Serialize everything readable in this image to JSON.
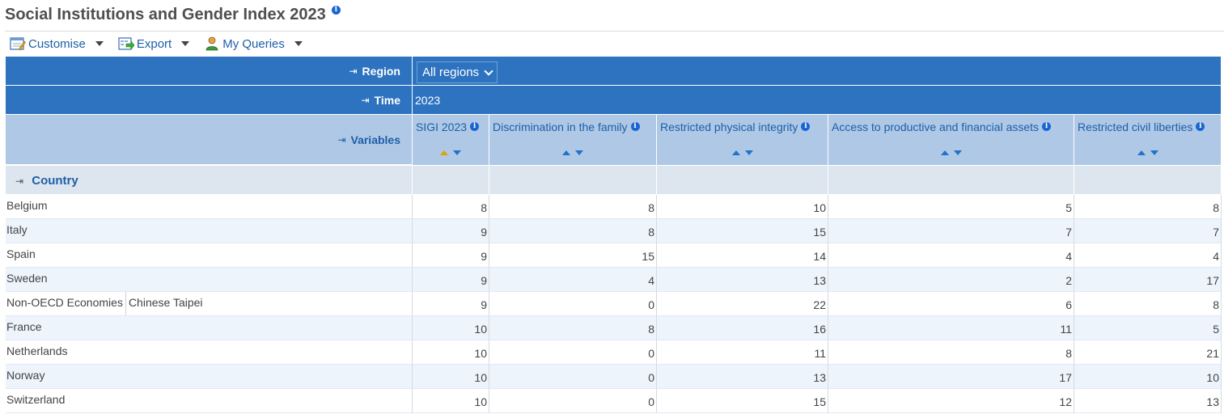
{
  "title": "Social Institutions and Gender Index 2023",
  "title_info_icon": "info-icon",
  "toolbar": {
    "customise": "Customise",
    "export": "Export",
    "my_queries": "My Queries"
  },
  "dims": {
    "region_label": "Region",
    "region_value": "All regions",
    "time_label": "Time",
    "time_value": "2023",
    "variables_label": "Variables",
    "country_label": "Country"
  },
  "columns": [
    "SIGI 2023",
    "Discrimination in the family",
    "Restricted physical integrity",
    "Access to productive and financial assets",
    "Restricted civil liberties"
  ],
  "rows": [
    {
      "name": "Belgium",
      "values": [
        "8",
        "8",
        "10",
        "5",
        "8"
      ]
    },
    {
      "name": "Italy",
      "values": [
        "9",
        "8",
        "15",
        "7",
        "7"
      ]
    },
    {
      "name": "Spain",
      "values": [
        "9",
        "15",
        "14",
        "4",
        "4"
      ]
    },
    {
      "name": "Sweden",
      "values": [
        "9",
        "4",
        "13",
        "2",
        "17"
      ]
    },
    {
      "name": "Non-OECD Economies",
      "sub": "Chinese Taipei",
      "values": [
        "9",
        "0",
        "22",
        "6",
        "8"
      ]
    },
    {
      "name": "France",
      "values": [
        "10",
        "8",
        "16",
        "11",
        "5"
      ]
    },
    {
      "name": "Netherlands",
      "values": [
        "10",
        "0",
        "11",
        "8",
        "21"
      ]
    },
    {
      "name": "Norway",
      "values": [
        "10",
        "0",
        "13",
        "17",
        "10"
      ]
    },
    {
      "name": "Switzerland",
      "values": [
        "10",
        "0",
        "15",
        "12",
        "13"
      ]
    }
  ],
  "colors": {
    "header_blue": "#2d73c0",
    "header_light": "#aec8e6",
    "link_blue": "#1d5fa8",
    "sort_active": "#d9a600"
  }
}
